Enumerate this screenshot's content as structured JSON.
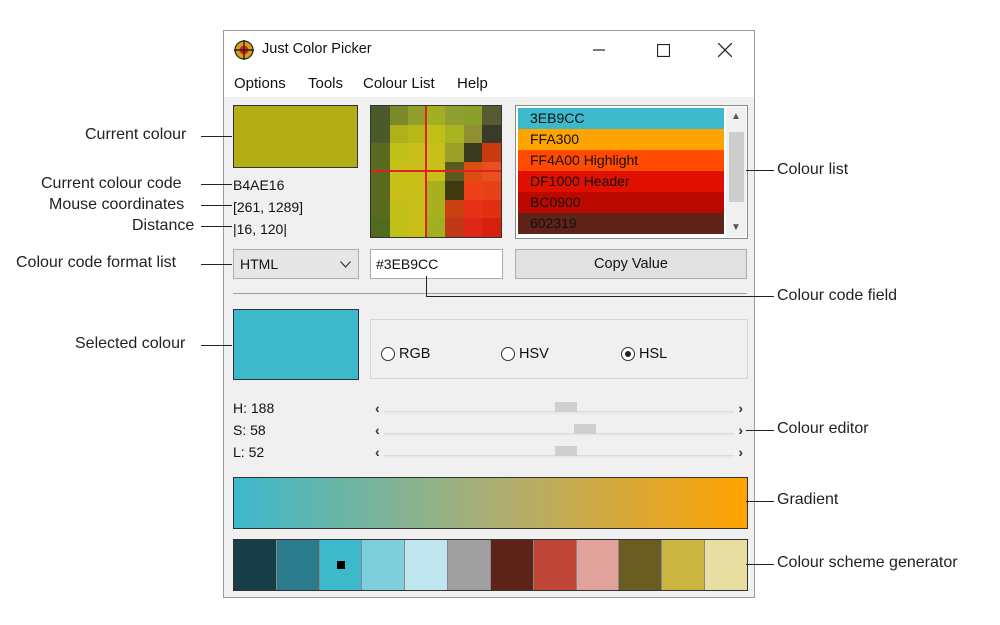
{
  "window": {
    "title": "Just Color Picker"
  },
  "menu": [
    "Options",
    "Tools",
    "Colour List",
    "Help"
  ],
  "current": {
    "color": "#B4AE16",
    "code": "B4AE16",
    "mouse_coords": "[261, 1289]",
    "distance": "|16, 120|"
  },
  "magnifier": {
    "pixels": [
      "#4a5a2a",
      "#7a8a2a",
      "#90a02a",
      "#a0b020",
      "#90a030",
      "#8aa02a",
      "#5a5a30",
      "#4a5a2a",
      "#b0b01a",
      "#b8b818",
      "#c0c018",
      "#a8b420",
      "#909030",
      "#3a3a2a",
      "#5a6a20",
      "#c0c018",
      "#c8c018",
      "#c8c018",
      "#9aa028",
      "#3a3a20",
      "#c83a10",
      "#5a6a20",
      "#c8c018",
      "#c8c018",
      "#c8c018",
      "#5a5a20",
      "#d85010",
      "#e85020",
      "#5a6a20",
      "#c8c018",
      "#c8c018",
      "#a8b020",
      "#403a10",
      "#f04018",
      "#e84018",
      "#5a6a20",
      "#c0c018",
      "#c8c018",
      "#a8b020",
      "#c84010",
      "#e83018",
      "#e03010",
      "#506a20",
      "#c0c018",
      "#c8c018",
      "#a0b020",
      "#c03818",
      "#e02818",
      "#d82010"
    ]
  },
  "colour_list": [
    {
      "label": "3EB9CC",
      "color": "#3EB9CC"
    },
    {
      "label": "FFA300",
      "color": "#FFA300"
    },
    {
      "label": "FF4A00 Highlight",
      "color": "#FF4A00"
    },
    {
      "label": "DF1000 Header",
      "color": "#DF1000"
    },
    {
      "label": "BC0900",
      "color": "#BC0900"
    },
    {
      "label": "602319",
      "color": "#602319"
    }
  ],
  "format": {
    "selected": "HTML"
  },
  "code_field": {
    "value": "#3EB9CC"
  },
  "copy_button": "Copy Value",
  "selected": {
    "color": "#3EB9CC"
  },
  "modes": [
    {
      "label": "RGB",
      "checked": false
    },
    {
      "label": "HSV",
      "checked": false
    },
    {
      "label": "HSL",
      "checked": true
    }
  ],
  "sliders": [
    {
      "label": "H: 188",
      "value": 188,
      "max": 360
    },
    {
      "label": "S: 58",
      "value": 58,
      "max": 100
    },
    {
      "label": "L: 52",
      "value": 52,
      "max": 100
    }
  ],
  "gradient": {
    "from": "#3EB9CC",
    "to": "#FFA300"
  },
  "scheme": [
    "#173e47",
    "#2a7c8c",
    "#3EB9CC",
    "#7dcfdc",
    "#bfe6ee",
    "#a0a0a0",
    "#5e2318",
    "#bf4536",
    "#e0a29a",
    "#6b5d22",
    "#c9b540",
    "#e8dea2"
  ],
  "scheme_selected_index": 2,
  "callouts": {
    "current_colour": "Current colour",
    "current_colour_code": "Current colour code",
    "mouse_coordinates": "Mouse coordinates",
    "distance": "Distance",
    "format_list": "Colour code format list",
    "selected_colour": "Selected colour",
    "colour_list": "Colour list",
    "code_field": "Colour code field",
    "colour_editor": "Colour editor",
    "gradient": "Gradient",
    "scheme_generator": "Colour scheme generator"
  }
}
